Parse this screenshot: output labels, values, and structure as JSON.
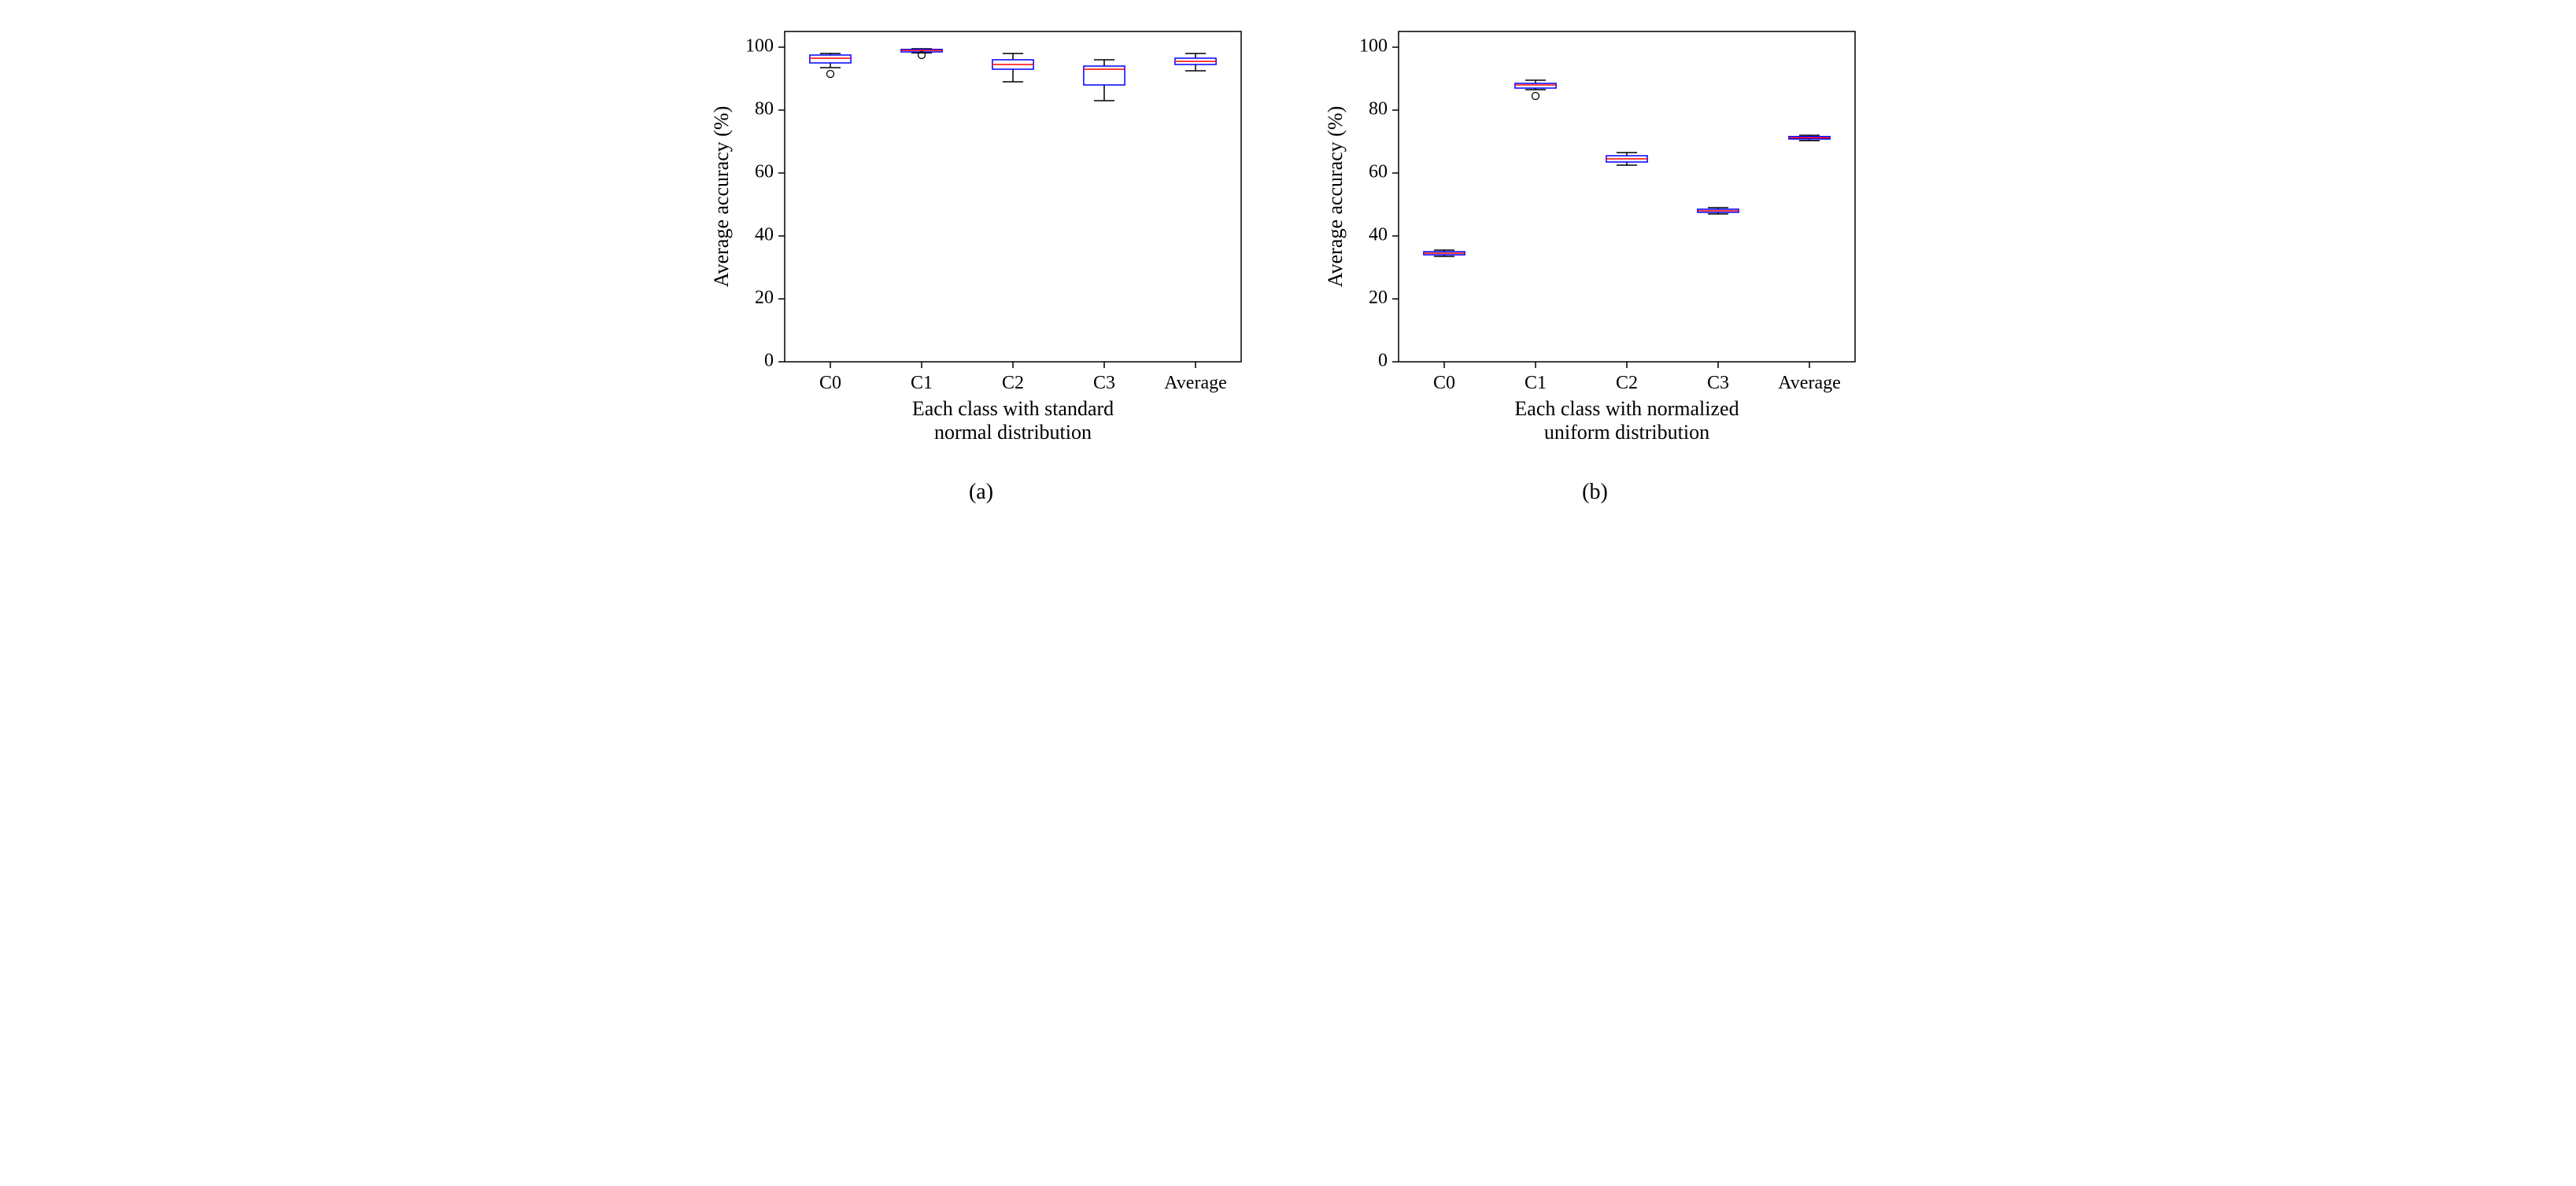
{
  "figure": {
    "background_color": "#ffffff",
    "font_family": "Times New Roman",
    "panels": [
      {
        "id": "a",
        "type": "boxplot",
        "sublabel": "(a)",
        "xlabel": "Each class with standard normal distribution",
        "ylabel": "Average accuracy (%)",
        "label_fontsize": 26,
        "tick_fontsize": 24,
        "ylim": [
          0,
          105
        ],
        "yticks": [
          0,
          20,
          40,
          60,
          80,
          100
        ],
        "categories": [
          "C0",
          "C1",
          "C2",
          "C3",
          "Average"
        ],
        "box_edge_color": "#0000ff",
        "median_color": "#ff0000",
        "whisker_color": "#000000",
        "cap_color": "#000000",
        "outlier_color": "#000000",
        "axis_color": "#000000",
        "line_width": 1.5,
        "data": [
          {
            "q1": 95.0,
            "median": 96.5,
            "q3": 97.5,
            "lo": 93.5,
            "hi": 98.0,
            "outliers": [
              91.5
            ]
          },
          {
            "q1": 98.5,
            "median": 99.0,
            "q3": 99.3,
            "lo": 98.2,
            "hi": 99.5,
            "outliers": [
              97.5
            ]
          },
          {
            "q1": 93.0,
            "median": 94.5,
            "q3": 96.0,
            "lo": 89.0,
            "hi": 98.0,
            "outliers": []
          },
          {
            "q1": 88.0,
            "median": 93.0,
            "q3": 94.0,
            "lo": 83.0,
            "hi": 96.0,
            "outliers": []
          },
          {
            "q1": 94.5,
            "median": 95.5,
            "q3": 96.5,
            "lo": 92.5,
            "hi": 98.0,
            "outliers": []
          }
        ]
      },
      {
        "id": "b",
        "type": "boxplot",
        "sublabel": "(b)",
        "xlabel": "Each class with normalized uniform distribution",
        "ylabel": "Average accuracy (%)",
        "label_fontsize": 26,
        "tick_fontsize": 24,
        "ylim": [
          0,
          105
        ],
        "yticks": [
          0,
          20,
          40,
          60,
          80,
          100
        ],
        "categories": [
          "C0",
          "C1",
          "C2",
          "C3",
          "Average"
        ],
        "box_edge_color": "#0000ff",
        "median_color": "#ff0000",
        "whisker_color": "#000000",
        "cap_color": "#000000",
        "outlier_color": "#000000",
        "axis_color": "#000000",
        "line_width": 1.5,
        "data": [
          {
            "q1": 34.0,
            "median": 34.5,
            "q3": 35.0,
            "lo": 33.5,
            "hi": 35.5,
            "outliers": []
          },
          {
            "q1": 87.0,
            "median": 88.0,
            "q3": 88.5,
            "lo": 86.5,
            "hi": 89.5,
            "outliers": [
              84.5
            ]
          },
          {
            "q1": 63.5,
            "median": 64.5,
            "q3": 65.5,
            "lo": 62.5,
            "hi": 66.5,
            "outliers": []
          },
          {
            "q1": 47.5,
            "median": 48.0,
            "q3": 48.5,
            "lo": 47.0,
            "hi": 49.0,
            "outliers": []
          },
          {
            "q1": 70.8,
            "median": 71.2,
            "q3": 71.6,
            "lo": 70.3,
            "hi": 72.0,
            "outliers": []
          }
        ]
      }
    ]
  }
}
